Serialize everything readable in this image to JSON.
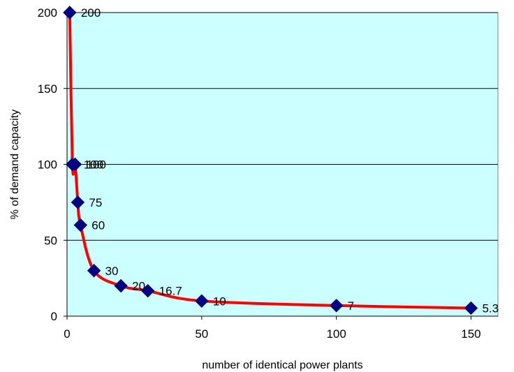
{
  "chart_data": {
    "type": "scatter",
    "title": "",
    "xlabel": "number of identical power plants",
    "ylabel": "% of demand capacity",
    "xlim": [
      0,
      160
    ],
    "ylim": [
      0,
      200
    ],
    "x_ticks": [
      "0",
      "50",
      "100",
      "150"
    ],
    "y_ticks": [
      "0",
      "50",
      "100",
      "150",
      "200"
    ],
    "grid": "horizontal",
    "legend": "none",
    "plot_background": "#ccffff",
    "line_color": "#ff0000",
    "marker_color": "#000080",
    "marker": "diamond",
    "points": [
      {
        "x": 1,
        "y": 200,
        "label": "200"
      },
      {
        "x": 2,
        "y": 100,
        "label": "100"
      },
      {
        "x": 3,
        "y": 100,
        "label": "100"
      },
      {
        "x": 4,
        "y": 75,
        "label": "75"
      },
      {
        "x": 5,
        "y": 60,
        "label": "60"
      },
      {
        "x": 10,
        "y": 30,
        "label": "30"
      },
      {
        "x": 20,
        "y": 20,
        "label": "20"
      },
      {
        "x": 30,
        "y": 16.7,
        "label": "16.7"
      },
      {
        "x": 50,
        "y": 10,
        "label": "10"
      },
      {
        "x": 100,
        "y": 7,
        "label": "7"
      },
      {
        "x": 150,
        "y": 5.3,
        "label": "5.3"
      }
    ]
  }
}
